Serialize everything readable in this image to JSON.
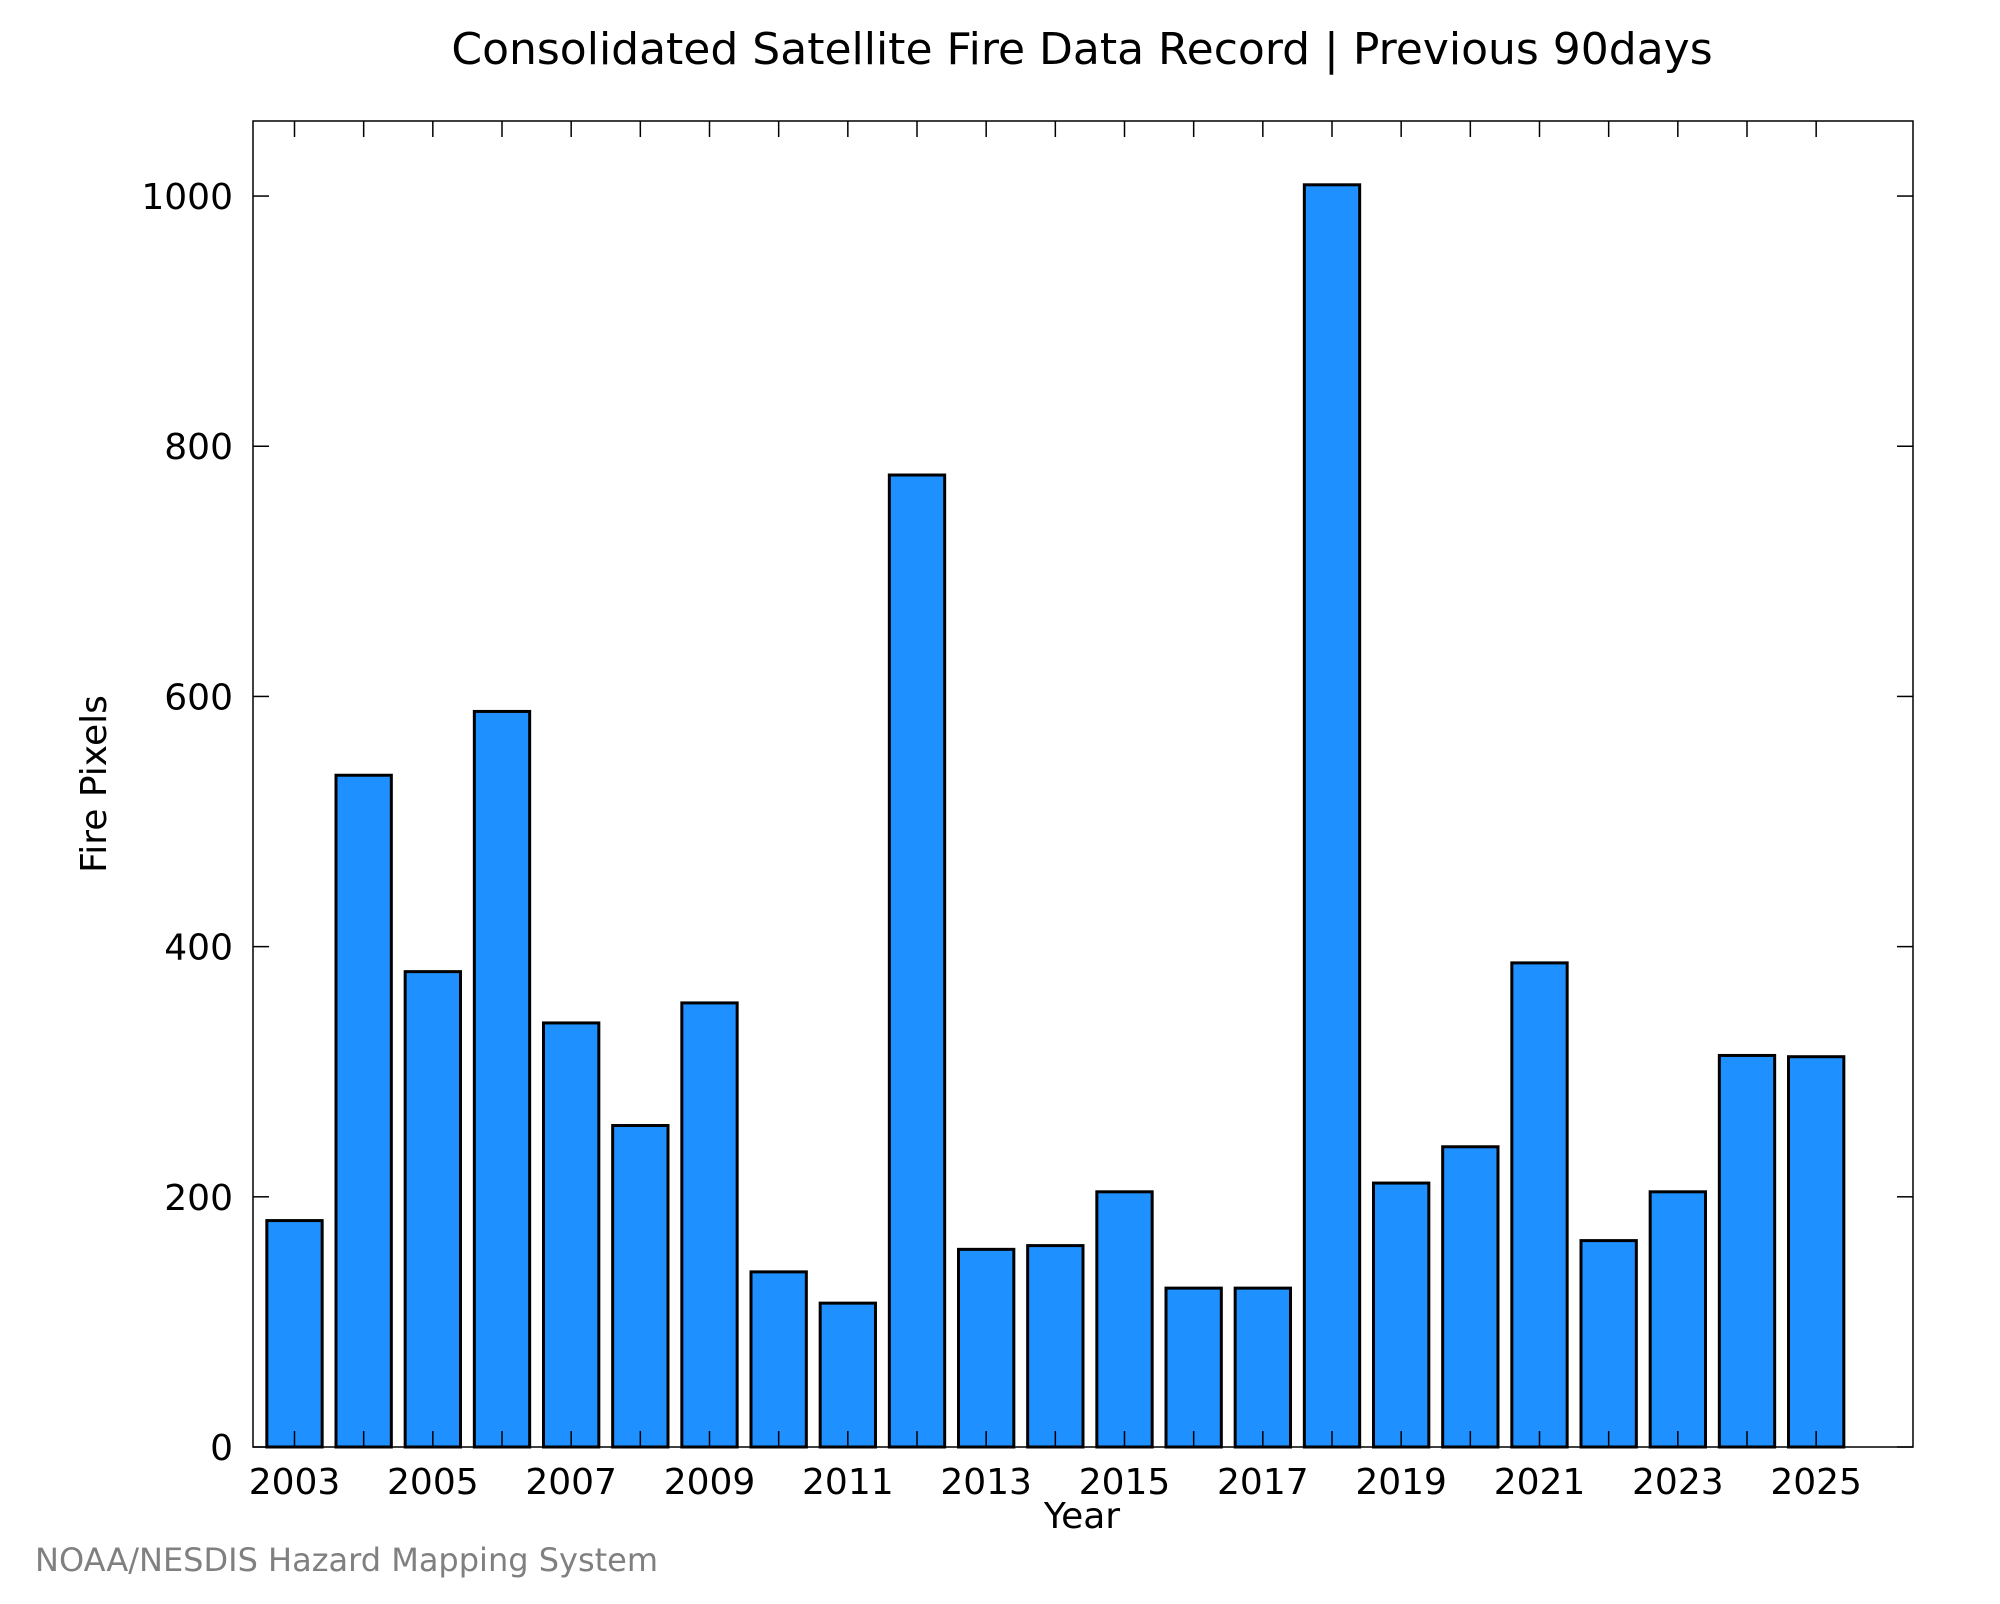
{
  "chart_data": {
    "type": "bar",
    "title": "Consolidated Satellite Fire Data Record | Previous 90days",
    "xlabel": "Year",
    "ylabel": "Fire Pixels",
    "source": "NOAA/NESDIS Hazard Mapping System",
    "categories": [
      "2003",
      "2004",
      "2005",
      "2006",
      "2007",
      "2008",
      "2009",
      "2010",
      "2011",
      "2012",
      "2013",
      "2014",
      "2015",
      "2016",
      "2017",
      "2018",
      "2019",
      "2020",
      "2021",
      "2022",
      "2023",
      "2024",
      "2025"
    ],
    "values": [
      181,
      537,
      380,
      588,
      339,
      257,
      355,
      140,
      115,
      777,
      158,
      161,
      204,
      127,
      127,
      1009,
      211,
      240,
      387,
      165,
      204,
      313,
      312
    ],
    "x_tick_labels": [
      "2003",
      "2005",
      "2007",
      "2009",
      "2011",
      "2013",
      "2015",
      "2017",
      "2019",
      "2021",
      "2023",
      "2025"
    ],
    "y_ticks": [
      0,
      200,
      400,
      600,
      800,
      1000
    ],
    "ylim": [
      0,
      1060
    ],
    "grid": false,
    "bar_color": "#1e90ff"
  }
}
